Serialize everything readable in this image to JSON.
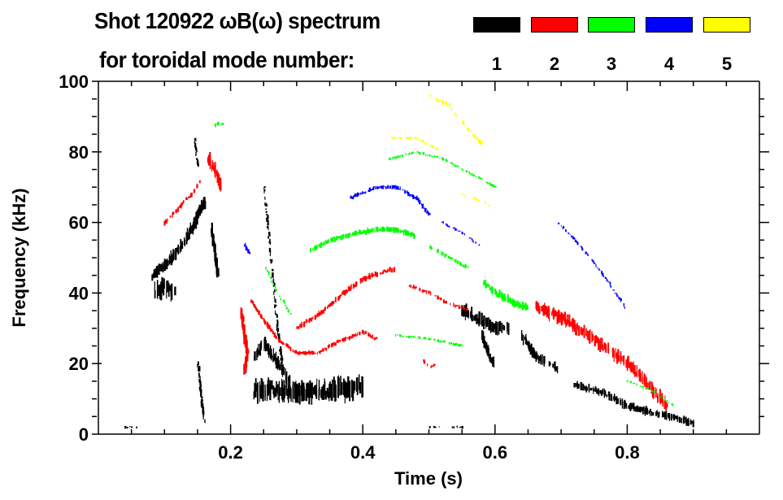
{
  "chart_data": {
    "type": "heatmap",
    "title_line1": "Shot 120922 ωB(ω) spectrum",
    "title_line2": "for toroidal mode number:",
    "xlabel": "Time (s)",
    "ylabel": "Frequency (kHz)",
    "xlim": [
      0.0,
      1.0
    ],
    "ylim": [
      0,
      100
    ],
    "x_ticks": [
      0.2,
      0.4,
      0.6,
      0.8
    ],
    "x_tick_labels": [
      "0.2",
      "0.4",
      "0.6",
      "0.8"
    ],
    "x_minor_step": 0.05,
    "y_ticks": [
      0,
      20,
      40,
      60,
      80,
      100
    ],
    "y_tick_labels": [
      "0",
      "20",
      "40",
      "60",
      "80",
      "100"
    ],
    "y_minor_step": 5,
    "legend": {
      "placement": "top-right",
      "entries": [
        {
          "mode": "1",
          "color": "#000000"
        },
        {
          "mode": "2",
          "color": "#ff0000"
        },
        {
          "mode": "3",
          "color": "#00ff00"
        },
        {
          "mode": "4",
          "color": "#0000ff"
        },
        {
          "mode": "5",
          "color": "#ffff00"
        }
      ]
    },
    "features": [
      {
        "mode": 1,
        "density": 0.9,
        "width": 9,
        "points": [
          [
            0.08,
            45
          ],
          [
            0.1,
            48
          ],
          [
            0.12,
            52
          ],
          [
            0.14,
            58
          ],
          [
            0.16,
            66
          ]
        ]
      },
      {
        "mode": 1,
        "density": 0.85,
        "width": 14,
        "points": [
          [
            0.085,
            40
          ],
          [
            0.1,
            42
          ],
          [
            0.115,
            40
          ]
        ]
      },
      {
        "mode": 1,
        "density": 0.7,
        "width": 8,
        "points": [
          [
            0.17,
            58
          ],
          [
            0.175,
            52
          ],
          [
            0.18,
            45
          ]
        ]
      },
      {
        "mode": 1,
        "density": 0.6,
        "width": 3,
        "points": [
          [
            0.145,
            84
          ],
          [
            0.147,
            80
          ],
          [
            0.15,
            76
          ]
        ]
      },
      {
        "mode": 1,
        "density": 0.6,
        "width": 4,
        "points": [
          [
            0.15,
            20
          ],
          [
            0.155,
            10
          ],
          [
            0.16,
            3
          ]
        ]
      },
      {
        "mode": 1,
        "density": 1.0,
        "width": 16,
        "points": [
          [
            0.235,
            12
          ],
          [
            0.26,
            13
          ],
          [
            0.3,
            12
          ],
          [
            0.34,
            12
          ],
          [
            0.38,
            13
          ],
          [
            0.4,
            14
          ]
        ]
      },
      {
        "mode": 1,
        "density": 0.8,
        "width": 10,
        "points": [
          [
            0.235,
            22
          ],
          [
            0.25,
            26
          ],
          [
            0.27,
            20
          ],
          [
            0.29,
            15
          ]
        ]
      },
      {
        "mode": 1,
        "density": 0.35,
        "width": 3,
        "points": [
          [
            0.25,
            70
          ],
          [
            0.26,
            50
          ],
          [
            0.27,
            30
          ],
          [
            0.28,
            15
          ]
        ]
      },
      {
        "mode": 1,
        "density": 0.9,
        "width": 10,
        "points": [
          [
            0.55,
            35
          ],
          [
            0.58,
            32
          ],
          [
            0.6,
            30
          ],
          [
            0.62,
            30
          ]
        ]
      },
      {
        "mode": 1,
        "density": 0.8,
        "width": 7,
        "points": [
          [
            0.58,
            28
          ],
          [
            0.59,
            22
          ],
          [
            0.6,
            20
          ]
        ]
      },
      {
        "mode": 1,
        "density": 0.7,
        "width": 8,
        "points": [
          [
            0.64,
            28
          ],
          [
            0.66,
            22
          ],
          [
            0.68,
            20
          ],
          [
            0.7,
            18
          ]
        ]
      },
      {
        "mode": 1,
        "density": 0.9,
        "width": 6,
        "points": [
          [
            0.72,
            14
          ],
          [
            0.76,
            12
          ],
          [
            0.8,
            8
          ],
          [
            0.84,
            6
          ],
          [
            0.88,
            4
          ],
          [
            0.9,
            3
          ]
        ]
      },
      {
        "mode": 1,
        "density": 0.3,
        "width": 2,
        "points": [
          [
            0.04,
            2
          ],
          [
            0.06,
            2
          ]
        ]
      },
      {
        "mode": 1,
        "density": 0.3,
        "width": 2,
        "points": [
          [
            0.5,
            2
          ],
          [
            0.56,
            2
          ]
        ]
      },
      {
        "mode": 2,
        "density": 0.9,
        "width": 10,
        "points": [
          [
            0.165,
            78
          ],
          [
            0.175,
            75
          ],
          [
            0.185,
            70
          ]
        ]
      },
      {
        "mode": 2,
        "density": 0.6,
        "width": 4,
        "points": [
          [
            0.1,
            60
          ],
          [
            0.12,
            64
          ],
          [
            0.14,
            68
          ],
          [
            0.155,
            72
          ]
        ]
      },
      {
        "mode": 2,
        "density": 0.9,
        "width": 8,
        "points": [
          [
            0.215,
            35
          ],
          [
            0.22,
            28
          ],
          [
            0.225,
            22
          ],
          [
            0.22,
            18
          ]
        ]
      },
      {
        "mode": 2,
        "density": 0.9,
        "width": 3,
        "points": [
          [
            0.23,
            38
          ],
          [
            0.25,
            32
          ],
          [
            0.27,
            27
          ],
          [
            0.3,
            23
          ],
          [
            0.33,
            23
          ],
          [
            0.36,
            26
          ],
          [
            0.4,
            29
          ],
          [
            0.42,
            27
          ]
        ]
      },
      {
        "mode": 2,
        "density": 0.9,
        "width": 4,
        "points": [
          [
            0.3,
            30
          ],
          [
            0.34,
            35
          ],
          [
            0.37,
            40
          ],
          [
            0.4,
            44
          ],
          [
            0.43,
            46
          ],
          [
            0.45,
            47
          ]
        ]
      },
      {
        "mode": 2,
        "density": 0.5,
        "width": 3,
        "points": [
          [
            0.47,
            42
          ],
          [
            0.5,
            40
          ],
          [
            0.53,
            37
          ],
          [
            0.56,
            35
          ]
        ]
      },
      {
        "mode": 2,
        "density": 0.9,
        "width": 10,
        "points": [
          [
            0.66,
            36
          ],
          [
            0.7,
            33
          ],
          [
            0.74,
            28
          ],
          [
            0.77,
            24
          ],
          [
            0.8,
            20
          ],
          [
            0.83,
            14
          ],
          [
            0.86,
            8
          ]
        ]
      },
      {
        "mode": 2,
        "density": 0.5,
        "width": 3,
        "points": [
          [
            0.49,
            21
          ],
          [
            0.5,
            19
          ],
          [
            0.51,
            20
          ]
        ]
      },
      {
        "mode": 3,
        "density": 0.6,
        "width": 3,
        "points": [
          [
            0.17,
            87
          ],
          [
            0.18,
            88
          ],
          [
            0.19,
            88
          ]
        ]
      },
      {
        "mode": 3,
        "density": 0.9,
        "width": 4,
        "points": [
          [
            0.32,
            52
          ],
          [
            0.35,
            55
          ],
          [
            0.39,
            57
          ],
          [
            0.42,
            58
          ],
          [
            0.45,
            58
          ],
          [
            0.48,
            56
          ]
        ]
      },
      {
        "mode": 3,
        "density": 0.6,
        "width": 3,
        "points": [
          [
            0.5,
            53
          ],
          [
            0.53,
            50
          ],
          [
            0.56,
            47
          ]
        ]
      },
      {
        "mode": 3,
        "density": 0.9,
        "width": 6,
        "points": [
          [
            0.58,
            43
          ],
          [
            0.6,
            40
          ],
          [
            0.63,
            37
          ],
          [
            0.65,
            36
          ]
        ]
      },
      {
        "mode": 3,
        "density": 0.5,
        "width": 2,
        "points": [
          [
            0.25,
            48
          ],
          [
            0.27,
            40
          ],
          [
            0.29,
            34
          ]
        ]
      },
      {
        "mode": 3,
        "density": 0.5,
        "width": 2,
        "points": [
          [
            0.44,
            78
          ],
          [
            0.48,
            80
          ],
          [
            0.52,
            78
          ],
          [
            0.56,
            74
          ],
          [
            0.6,
            70
          ]
        ]
      },
      {
        "mode": 3,
        "density": 0.5,
        "width": 2,
        "points": [
          [
            0.45,
            28
          ],
          [
            0.5,
            27
          ],
          [
            0.55,
            25
          ]
        ]
      },
      {
        "mode": 3,
        "density": 0.5,
        "width": 2,
        "points": [
          [
            0.8,
            15
          ],
          [
            0.84,
            12
          ],
          [
            0.87,
            8
          ]
        ]
      },
      {
        "mode": 4,
        "density": 0.8,
        "width": 3,
        "points": [
          [
            0.38,
            67
          ],
          [
            0.42,
            70
          ],
          [
            0.45,
            70
          ],
          [
            0.48,
            67
          ],
          [
            0.5,
            62
          ]
        ]
      },
      {
        "mode": 4,
        "density": 0.5,
        "width": 2,
        "points": [
          [
            0.52,
            60
          ],
          [
            0.55,
            57
          ],
          [
            0.58,
            53
          ]
        ]
      },
      {
        "mode": 4,
        "density": 0.5,
        "width": 2,
        "points": [
          [
            0.69,
            61
          ],
          [
            0.72,
            55
          ],
          [
            0.76,
            46
          ],
          [
            0.8,
            35
          ]
        ]
      },
      {
        "mode": 4,
        "density": 0.7,
        "width": 3,
        "points": [
          [
            0.22,
            54
          ],
          [
            0.225,
            52
          ],
          [
            0.23,
            51
          ]
        ]
      },
      {
        "mode": 5,
        "density": 0.5,
        "width": 3,
        "points": [
          [
            0.5,
            96
          ],
          [
            0.53,
            93
          ],
          [
            0.56,
            86
          ],
          [
            0.58,
            82
          ]
        ]
      },
      {
        "mode": 5,
        "density": 0.4,
        "width": 2,
        "points": [
          [
            0.44,
            84
          ],
          [
            0.48,
            84
          ],
          [
            0.52,
            80
          ]
        ]
      },
      {
        "mode": 5,
        "density": 0.3,
        "width": 2,
        "points": [
          [
            0.55,
            68
          ],
          [
            0.58,
            66
          ],
          [
            0.6,
            64
          ]
        ]
      }
    ]
  }
}
